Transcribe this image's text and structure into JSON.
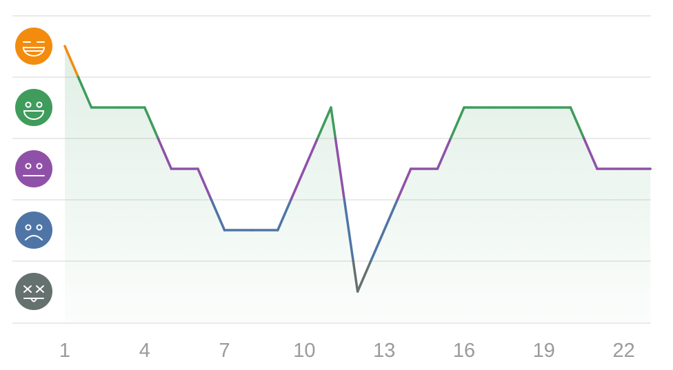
{
  "chart_data": {
    "type": "line",
    "title": "",
    "xlabel": "",
    "ylabel": "",
    "x_ticks": [
      "1",
      "4",
      "7",
      "10",
      "13",
      "16",
      "19",
      "22"
    ],
    "y_levels": [
      {
        "level": 5,
        "name": "rad",
        "icon": "laughing-face-icon",
        "color": "#f38c0e"
      },
      {
        "level": 4,
        "name": "good",
        "icon": "smiling-face-icon",
        "color": "#3f9c5c"
      },
      {
        "level": 3,
        "name": "meh",
        "icon": "neutral-face-icon",
        "color": "#8f51a8"
      },
      {
        "level": 2,
        "name": "bad",
        "icon": "frowning-face-icon",
        "color": "#4f75a6"
      },
      {
        "level": 1,
        "name": "awful",
        "icon": "dizzy-face-icon",
        "color": "#65716e"
      }
    ],
    "x": [
      1,
      2,
      3,
      4,
      5,
      6,
      7,
      8,
      9,
      10,
      11,
      12,
      13,
      14,
      15,
      16,
      17,
      18,
      19,
      20,
      21,
      22,
      23
    ],
    "values": [
      5,
      4,
      4,
      4,
      3,
      3,
      2,
      2,
      2,
      3,
      4,
      1,
      2,
      3,
      3,
      4,
      4,
      4,
      4,
      4,
      3,
      3,
      3
    ],
    "xlim": [
      1,
      23
    ],
    "ylim": [
      1,
      5
    ],
    "grid": true,
    "area_fill_color": "#3f9c5c"
  }
}
